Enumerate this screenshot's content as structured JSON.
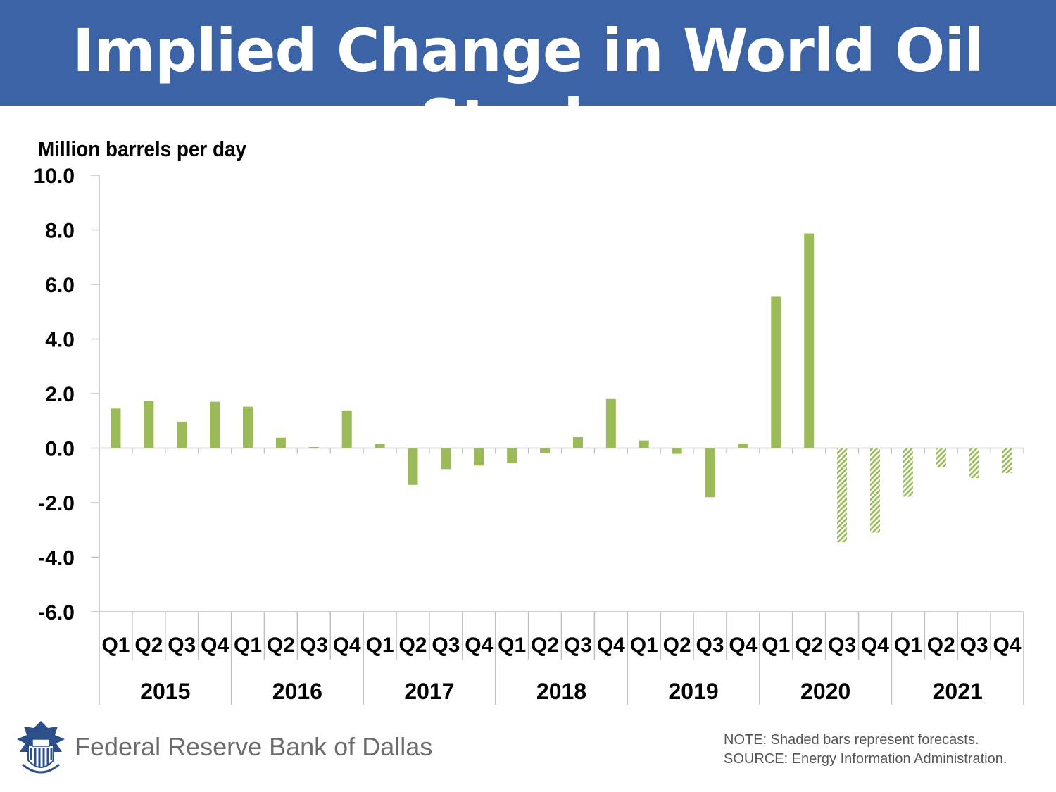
{
  "title": "Implied Change in World Oil Stocks",
  "chart_data": {
    "type": "bar",
    "title": "Implied Change in World Oil Stocks",
    "ylabel": "Million barrels per day",
    "xlabel": "",
    "ylim": [
      -6.0,
      10.0
    ],
    "yticks": [
      "10.0",
      "8.0",
      "6.0",
      "4.0",
      "2.0",
      "0.0",
      "-2.0",
      "-4.0",
      "-6.0"
    ],
    "years": [
      "2015",
      "2016",
      "2017",
      "2018",
      "2019",
      "2020",
      "2021"
    ],
    "quarters": [
      "Q1",
      "Q2",
      "Q3",
      "Q4"
    ],
    "categories": [
      "2015 Q1",
      "2015 Q2",
      "2015 Q3",
      "2015 Q4",
      "2016 Q1",
      "2016 Q2",
      "2016 Q3",
      "2016 Q4",
      "2017 Q1",
      "2017 Q2",
      "2017 Q3",
      "2017 Q4",
      "2018 Q1",
      "2018 Q2",
      "2018 Q3",
      "2018 Q4",
      "2019 Q1",
      "2019 Q2",
      "2019 Q3",
      "2019 Q4",
      "2020 Q1",
      "2020 Q2",
      "2020 Q3",
      "2020 Q4",
      "2021 Q1",
      "2021 Q2",
      "2021 Q3",
      "2021 Q4"
    ],
    "values": [
      1.45,
      1.72,
      0.97,
      1.7,
      1.52,
      0.38,
      0.04,
      1.36,
      0.15,
      -1.35,
      -0.77,
      -0.64,
      -0.54,
      -0.18,
      0.4,
      1.8,
      0.28,
      -0.21,
      -1.8,
      0.16,
      5.55,
      7.87,
      -3.45,
      -3.1,
      -1.78,
      -0.7,
      -1.1,
      -0.92
    ],
    "forecast": [
      false,
      false,
      false,
      false,
      false,
      false,
      false,
      false,
      false,
      false,
      false,
      false,
      false,
      false,
      false,
      false,
      false,
      false,
      false,
      false,
      false,
      false,
      true,
      true,
      true,
      true,
      true,
      true
    ],
    "grid": false,
    "legend": "none",
    "colors": {
      "bar": "#9bbb59",
      "axis": "#bfbfbf",
      "text": "#000000"
    }
  },
  "footer": {
    "org": "Federal Reserve Bank of Dallas",
    "note": "NOTE: Shaded bars represent forecasts.",
    "source": "SOURCE: Energy Information Administration."
  },
  "colors": {
    "banner": "#3b63a5",
    "banner_text": "#ffffff",
    "footer_text": "#6b6b6b"
  }
}
